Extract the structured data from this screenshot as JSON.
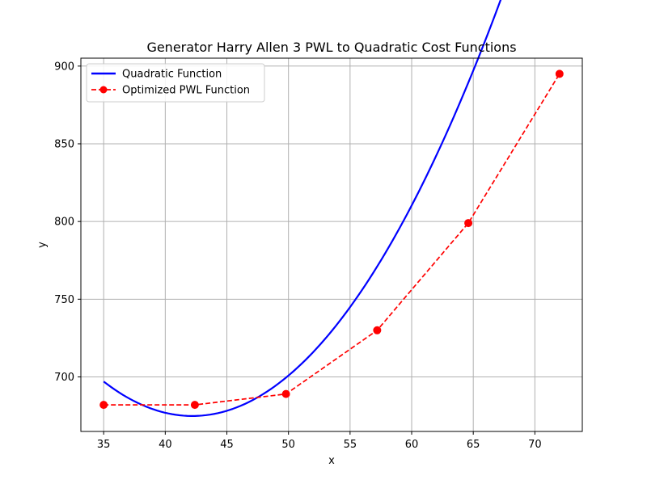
{
  "chart_data": {
    "type": "line",
    "title": "Generator Harry Allen 3 PWL to Quadratic Cost Functions",
    "xlabel": "x",
    "ylabel": "y",
    "xlim": [
      33.15,
      73.85
    ],
    "ylim": [
      664.9,
      905.1
    ],
    "xticks": [
      35,
      40,
      45,
      50,
      55,
      60,
      65,
      70
    ],
    "yticks": [
      700,
      750,
      800,
      850,
      900
    ],
    "grid": true,
    "legend": {
      "position": "top-left"
    },
    "series": [
      {
        "name": "Quadratic Function",
        "kind": "quadratic",
        "color": "#0000ff",
        "linestyle": "solid",
        "x_range": [
          35,
          72
        ],
        "coefficients": {
          "a": 0.4277,
          "b": -36.1,
          "c": 1436.6
        }
      },
      {
        "name": "Optimized PWL Function",
        "kind": "piecewise",
        "color": "#ff0000",
        "linestyle": "dashed",
        "marker": "circle",
        "x": [
          35.0,
          42.4,
          49.8,
          57.2,
          64.6,
          72.0
        ],
        "y": [
          682.0,
          682.0,
          689.0,
          730.0,
          799.0,
          895.0
        ]
      }
    ]
  }
}
